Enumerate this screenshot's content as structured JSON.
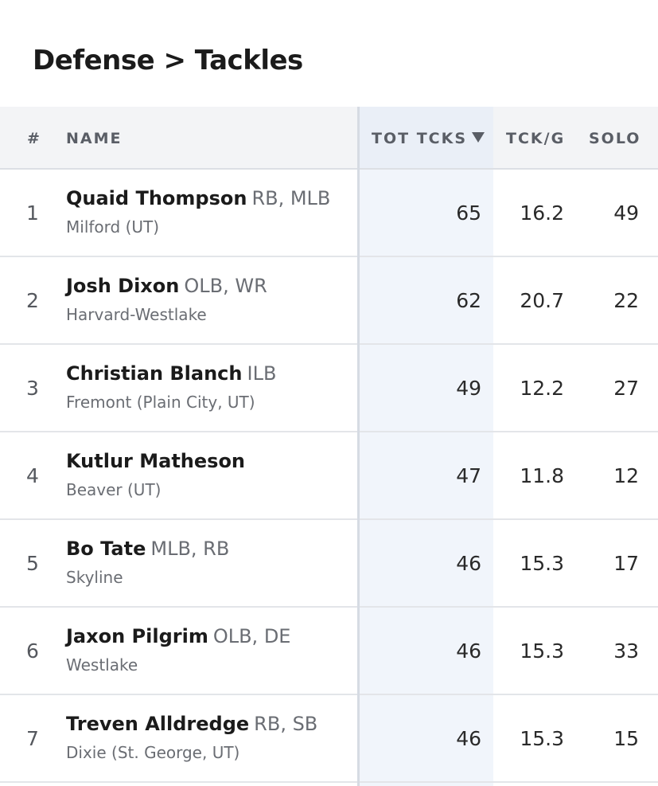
{
  "title": "Defense > Tackles",
  "columns": {
    "rank": "#",
    "name": "NAME",
    "tot_tcks": "TOT TCKS",
    "tck_g": "TCK/G",
    "solo": "SOLO"
  },
  "sort": {
    "column": "TOT TCKS",
    "direction": "desc",
    "icon": "caret-down-icon"
  },
  "rows": [
    {
      "rank": "1",
      "name": "Quaid Thompson",
      "positions": "RB, MLB",
      "school": "Milford (UT)",
      "tot": "65",
      "tckg": "16.2",
      "solo": "49"
    },
    {
      "rank": "2",
      "name": "Josh Dixon",
      "positions": "OLB, WR",
      "school": "Harvard-Westlake",
      "tot": "62",
      "tckg": "20.7",
      "solo": "22"
    },
    {
      "rank": "3",
      "name": "Christian Blanch",
      "positions": "ILB",
      "school": "Fremont (Plain City, UT)",
      "tot": "49",
      "tckg": "12.2",
      "solo": "27"
    },
    {
      "rank": "4",
      "name": "Kutlur Matheson",
      "positions": "",
      "school": "Beaver (UT)",
      "tot": "47",
      "tckg": "11.8",
      "solo": "12"
    },
    {
      "rank": "5",
      "name": "Bo Tate",
      "positions": "MLB, RB",
      "school": "Skyline",
      "tot": "46",
      "tckg": "15.3",
      "solo": "17"
    },
    {
      "rank": "6",
      "name": "Jaxon Pilgrim",
      "positions": "OLB, DE",
      "school": "Westlake",
      "tot": "46",
      "tckg": "15.3",
      "solo": "33"
    },
    {
      "rank": "7",
      "name": "Treven Alldredge",
      "positions": "RB, SB",
      "school": "Dixie (St. George, UT)",
      "tot": "46",
      "tckg": "15.3",
      "solo": "15"
    }
  ],
  "colors": {
    "header_bg": "#f3f4f6",
    "sorted_column_bg": "#f1f5fb",
    "divider": "#d6dbe3"
  }
}
